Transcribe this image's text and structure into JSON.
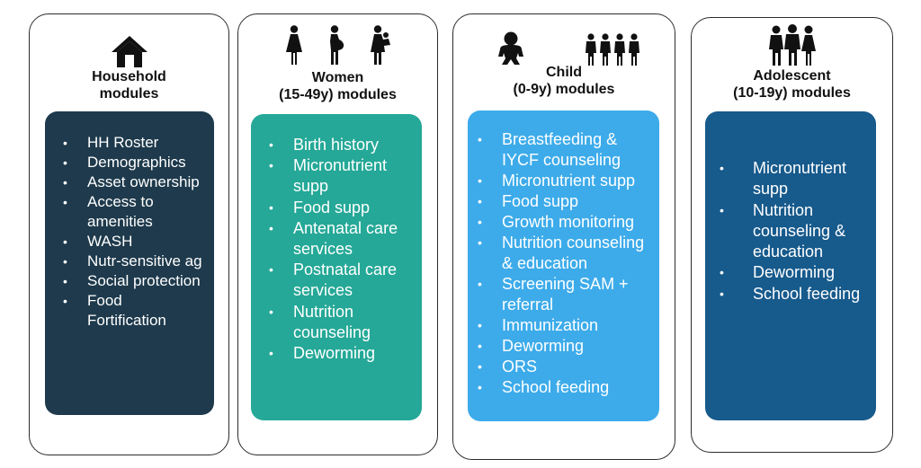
{
  "columns": [
    {
      "key": "household",
      "title": [
        "Household",
        "modules"
      ],
      "icons": [
        "house-icon"
      ],
      "color": "#1e3a4c",
      "items": [
        "HH Roster",
        "Demographics",
        "Asset ownership",
        "Access to amenities",
        "WASH",
        "Nutr-sensitive ag",
        "Social protection",
        "Food Fortification"
      ]
    },
    {
      "key": "women",
      "title": [
        "Women",
        "(15-49y) modules"
      ],
      "icons": [
        "woman-icon",
        "pregnant-woman-icon",
        "woman-with-child-icon"
      ],
      "color": "#25a897",
      "items": [
        "Birth history",
        "Micronutrient supp",
        "Food supp",
        "Antenatal care services",
        "Postnatal care services",
        "Nutrition counseling",
        "Deworming"
      ]
    },
    {
      "key": "child",
      "title": [
        "Child",
        "(0-9y) modules"
      ],
      "icons": [
        "baby-icon",
        "children-group-icon"
      ],
      "color": "#3dabea",
      "items": [
        "Breastfeeding & IYCF counseling",
        "Micronutrient supp",
        "Food supp",
        "Growth monitoring",
        "Nutrition counseling & education",
        "Screening SAM + referral",
        "Immunization",
        "Deworming",
        "ORS",
        "School feeding"
      ]
    },
    {
      "key": "adolescent",
      "title": [
        "Adolescent",
        "(10-19y) modules"
      ],
      "icons": [
        "adolescent-group-icon"
      ],
      "color": "#175a8c",
      "items": [
        "Micronutrient supp",
        "Nutrition counseling & education",
        "Deworming",
        "School feeding"
      ]
    }
  ]
}
